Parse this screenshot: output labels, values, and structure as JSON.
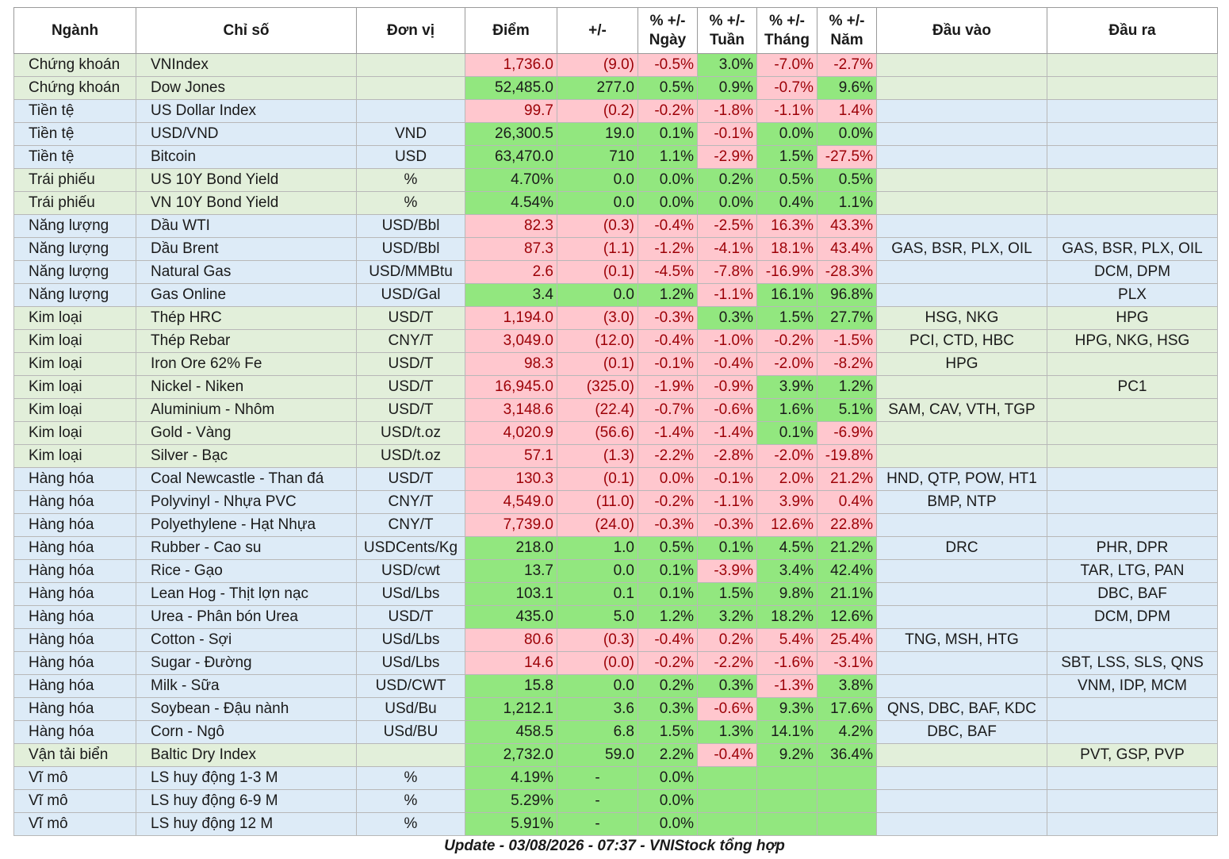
{
  "headers": [
    "Ngành",
    "Chỉ số",
    "Đơn vị",
    "Điểm",
    "+/-",
    "% +/-\nNgày",
    "% +/-\nTuần",
    "% +/-\nTháng",
    "% +/-\nNăm",
    "Đầu vào",
    "Đầu ra"
  ],
  "footer": "Update - 03/08/2026 - 07:37 - VNIStock tổng hợp",
  "colors": {
    "positive": "#92e77f",
    "negative": "#ffc7ce",
    "negative_text": "#9c0006",
    "group_green": "#e2efda",
    "group_blue": "#ddebf7"
  },
  "rows": [
    {
      "group": "Chứng khoán",
      "index": "VNIndex",
      "unit": "",
      "point": "1,736.0",
      "change": "(9.0)",
      "day": "-0.5%",
      "week": "3.0%",
      "month": "-7.0%",
      "year": "-2.7%",
      "input": "",
      "output": "",
      "bg": "g1",
      "s": [
        "neg",
        "neg",
        "neg",
        "pos",
        "neg",
        "neg"
      ]
    },
    {
      "group": "Chứng khoán",
      "index": "Dow Jones",
      "unit": "",
      "point": "52,485.0",
      "change": "277.0",
      "day": "0.5%",
      "week": "0.9%",
      "month": "-0.7%",
      "year": "9.6%",
      "input": "",
      "output": "",
      "bg": "g1",
      "s": [
        "pos",
        "pos",
        "pos",
        "pos",
        "neg",
        "pos"
      ]
    },
    {
      "group": "Tiền tệ",
      "index": "US Dollar Index",
      "unit": "",
      "point": "99.7",
      "change": "(0.2)",
      "day": "-0.2%",
      "week": "-1.8%",
      "month": "-1.1%",
      "year": "1.4%",
      "input": "",
      "output": "",
      "bg": "g2",
      "s": [
        "neg",
        "neg",
        "neg",
        "neg",
        "neg",
        "neg"
      ]
    },
    {
      "group": "Tiền tệ",
      "index": "USD/VND",
      "unit": "VND",
      "point": "26,300.5",
      "change": "19.0",
      "day": "0.1%",
      "week": "-0.1%",
      "month": "0.0%",
      "year": "0.0%",
      "input": "",
      "output": "",
      "bg": "g2",
      "s": [
        "pos",
        "pos",
        "pos",
        "neg",
        "pos",
        "pos"
      ]
    },
    {
      "group": "Tiền tệ",
      "index": "Bitcoin",
      "unit": "USD",
      "point": "63,470.0",
      "change": "710",
      "day": "1.1%",
      "week": "-2.9%",
      "month": "1.5%",
      "year": "-27.5%",
      "input": "",
      "output": "",
      "bg": "g2",
      "s": [
        "pos",
        "pos",
        "pos",
        "neg",
        "pos",
        "neg"
      ]
    },
    {
      "group": "Trái phiếu",
      "index": "US 10Y Bond Yield",
      "unit": "%",
      "point": "4.70%",
      "change": "0.0",
      "day": "0.0%",
      "week": "0.2%",
      "month": "0.5%",
      "year": "0.5%",
      "input": "",
      "output": "",
      "bg": "g1",
      "s": [
        "pos",
        "pos",
        "pos",
        "pos",
        "pos",
        "pos"
      ]
    },
    {
      "group": "Trái phiếu",
      "index": "VN 10Y Bond Yield",
      "unit": "%",
      "point": "4.54%",
      "change": "0.0",
      "day": "0.0%",
      "week": "0.0%",
      "month": "0.4%",
      "year": "1.1%",
      "input": "",
      "output": "",
      "bg": "g1",
      "s": [
        "pos",
        "pos",
        "pos",
        "pos",
        "pos",
        "pos"
      ]
    },
    {
      "group": "Năng lượng",
      "index": "Dầu WTI",
      "unit": "USD/Bbl",
      "point": "82.3",
      "change": "(0.3)",
      "day": "-0.4%",
      "week": "-2.5%",
      "month": "16.3%",
      "year": "43.3%",
      "input": "",
      "output": "",
      "bg": "g2",
      "s": [
        "neg",
        "neg",
        "neg",
        "neg",
        "neg",
        "neg"
      ]
    },
    {
      "group": "Năng lượng",
      "index": "Dầu Brent",
      "unit": "USD/Bbl",
      "point": "87.3",
      "change": "(1.1)",
      "day": "-1.2%",
      "week": "-4.1%",
      "month": "18.1%",
      "year": "43.4%",
      "input": "GAS, BSR, PLX, OIL",
      "output": "GAS, BSR, PLX, OIL",
      "bg": "g2",
      "s": [
        "neg",
        "neg",
        "neg",
        "neg",
        "neg",
        "neg"
      ]
    },
    {
      "group": "Năng lượng",
      "index": "Natural Gas",
      "unit": "USD/MMBtu",
      "point": "2.6",
      "change": "(0.1)",
      "day": "-4.5%",
      "week": "-7.8%",
      "month": "-16.9%",
      "year": "-28.3%",
      "input": "",
      "output": "DCM, DPM",
      "bg": "g2",
      "s": [
        "neg",
        "neg",
        "neg",
        "neg",
        "neg",
        "neg"
      ]
    },
    {
      "group": "Năng lượng",
      "index": "Gas Online",
      "unit": "USD/Gal",
      "point": "3.4",
      "change": "0.0",
      "day": "1.2%",
      "week": "-1.1%",
      "month": "16.1%",
      "year": "96.8%",
      "input": "",
      "output": "PLX",
      "bg": "g2",
      "s": [
        "pos",
        "pos",
        "pos",
        "neg",
        "pos",
        "pos"
      ]
    },
    {
      "group": "Kim loại",
      "index": "Thép HRC",
      "unit": "USD/T",
      "point": "1,194.0",
      "change": "(3.0)",
      "day": "-0.3%",
      "week": "0.3%",
      "month": "1.5%",
      "year": "27.7%",
      "input": "HSG, NKG",
      "output": "HPG",
      "bg": "g1",
      "s": [
        "neg",
        "neg",
        "neg",
        "pos",
        "pos",
        "pos"
      ]
    },
    {
      "group": "Kim loại",
      "index": "Thép Rebar",
      "unit": "CNY/T",
      "point": "3,049.0",
      "change": "(12.0)",
      "day": "-0.4%",
      "week": "-1.0%",
      "month": "-0.2%",
      "year": "-1.5%",
      "input": "PCI, CTD, HBC",
      "output": "HPG, NKG, HSG",
      "bg": "g1",
      "s": [
        "neg",
        "neg",
        "neg",
        "neg",
        "neg",
        "neg"
      ]
    },
    {
      "group": "Kim loại",
      "index": "Iron Ore 62% Fe",
      "unit": "USD/T",
      "point": "98.3",
      "change": "(0.1)",
      "day": "-0.1%",
      "week": "-0.4%",
      "month": "-2.0%",
      "year": "-8.2%",
      "input": "HPG",
      "output": "",
      "bg": "g1",
      "s": [
        "neg",
        "neg",
        "neg",
        "neg",
        "neg",
        "neg"
      ]
    },
    {
      "group": "Kim loại",
      "index": "Nickel - Niken",
      "unit": "USD/T",
      "point": "16,945.0",
      "change": "(325.0)",
      "day": "-1.9%",
      "week": "-0.9%",
      "month": "3.9%",
      "year": "1.2%",
      "input": "",
      "output": "PC1",
      "bg": "g1",
      "s": [
        "neg",
        "neg",
        "neg",
        "neg",
        "pos",
        "pos"
      ]
    },
    {
      "group": "Kim loại",
      "index": "Aluminium - Nhôm",
      "unit": "USD/T",
      "point": "3,148.6",
      "change": "(22.4)",
      "day": "-0.7%",
      "week": "-0.6%",
      "month": "1.6%",
      "year": "5.1%",
      "input": "SAM, CAV, VTH, TGP",
      "output": "",
      "bg": "g1",
      "s": [
        "neg",
        "neg",
        "neg",
        "neg",
        "pos",
        "pos"
      ]
    },
    {
      "group": "Kim loại",
      "index": "Gold - Vàng",
      "unit": "USD/t.oz",
      "point": "4,020.9",
      "change": "(56.6)",
      "day": "-1.4%",
      "week": "-1.4%",
      "month": "0.1%",
      "year": "-6.9%",
      "input": "",
      "output": "",
      "bg": "g1",
      "s": [
        "neg",
        "neg",
        "neg",
        "neg",
        "pos",
        "neg"
      ]
    },
    {
      "group": "Kim loại",
      "index": "Silver - Bạc",
      "unit": "USD/t.oz",
      "point": "57.1",
      "change": "(1.3)",
      "day": "-2.2%",
      "week": "-2.8%",
      "month": "-2.0%",
      "year": "-19.8%",
      "input": "",
      "output": "",
      "bg": "g1",
      "s": [
        "neg",
        "neg",
        "neg",
        "neg",
        "neg",
        "neg"
      ]
    },
    {
      "group": "Hàng hóa",
      "index": "Coal Newcastle - Than đá",
      "unit": "USD/T",
      "point": "130.3",
      "change": "(0.1)",
      "day": "0.0%",
      "week": "-0.1%",
      "month": "2.0%",
      "year": "21.2%",
      "input": "HND, QTP, POW, HT1",
      "output": "",
      "bg": "g2",
      "s": [
        "neg",
        "neg",
        "neg",
        "neg",
        "neg",
        "neg"
      ]
    },
    {
      "group": "Hàng hóa",
      "index": "Polyvinyl - Nhựa PVC",
      "unit": "CNY/T",
      "point": "4,549.0",
      "change": "(11.0)",
      "day": "-0.2%",
      "week": "-1.1%",
      "month": "3.9%",
      "year": "0.4%",
      "input": "BMP, NTP",
      "output": "",
      "bg": "g2",
      "s": [
        "neg",
        "neg",
        "neg",
        "neg",
        "neg",
        "neg"
      ]
    },
    {
      "group": "Hàng hóa",
      "index": "Polyethylene - Hạt Nhựa",
      "unit": "CNY/T",
      "point": "7,739.0",
      "change": "(24.0)",
      "day": "-0.3%",
      "week": "-0.3%",
      "month": "12.6%",
      "year": "22.8%",
      "input": "",
      "output": "",
      "bg": "g2",
      "s": [
        "neg",
        "neg",
        "neg",
        "neg",
        "neg",
        "neg"
      ]
    },
    {
      "group": "Hàng hóa",
      "index": "Rubber - Cao su",
      "unit": "USDCents/Kg",
      "point": "218.0",
      "change": "1.0",
      "day": "0.5%",
      "week": "0.1%",
      "month": "4.5%",
      "year": "21.2%",
      "input": "DRC",
      "output": "PHR, DPR",
      "bg": "g2",
      "s": [
        "pos",
        "pos",
        "pos",
        "pos",
        "pos",
        "pos"
      ]
    },
    {
      "group": "Hàng hóa",
      "index": "Rice - Gạo",
      "unit": "USD/cwt",
      "point": "13.7",
      "change": "0.0",
      "day": "0.1%",
      "week": "-3.9%",
      "month": "3.4%",
      "year": "42.4%",
      "input": "",
      "output": "TAR, LTG, PAN",
      "bg": "g2",
      "s": [
        "pos",
        "pos",
        "pos",
        "neg",
        "pos",
        "pos"
      ]
    },
    {
      "group": "Hàng hóa",
      "index": "Lean Hog - Thịt lợn nạc",
      "unit": "USd/Lbs",
      "point": "103.1",
      "change": "0.1",
      "day": "0.1%",
      "week": "1.5%",
      "month": "9.8%",
      "year": "21.1%",
      "input": "",
      "output": "DBC, BAF",
      "bg": "g2",
      "s": [
        "pos",
        "pos",
        "pos",
        "pos",
        "pos",
        "pos"
      ]
    },
    {
      "group": "Hàng hóa",
      "index": "Urea - Phân bón Urea",
      "unit": "USD/T",
      "point": "435.0",
      "change": "5.0",
      "day": "1.2%",
      "week": "3.2%",
      "month": "18.2%",
      "year": "12.6%",
      "input": "",
      "output": "DCM, DPM",
      "bg": "g2",
      "s": [
        "pos",
        "pos",
        "pos",
        "pos",
        "pos",
        "pos"
      ]
    },
    {
      "group": "Hàng hóa",
      "index": "Cotton - Sợi",
      "unit": "USd/Lbs",
      "point": "80.6",
      "change": "(0.3)",
      "day": "-0.4%",
      "week": "0.2%",
      "month": "5.4%",
      "year": "25.4%",
      "input": "TNG, MSH, HTG",
      "output": "",
      "bg": "g2",
      "s": [
        "neg",
        "neg",
        "neg",
        "neg",
        "neg",
        "neg"
      ]
    },
    {
      "group": "Hàng hóa",
      "index": "Sugar - Đường",
      "unit": "USd/Lbs",
      "point": "14.6",
      "change": "(0.0)",
      "day": "-0.2%",
      "week": "-2.2%",
      "month": "-1.6%",
      "year": "-3.1%",
      "input": "",
      "output": "SBT, LSS, SLS, QNS",
      "bg": "g2",
      "s": [
        "neg",
        "neg",
        "neg",
        "neg",
        "neg",
        "neg"
      ]
    },
    {
      "group": "Hàng hóa",
      "index": "Milk - Sữa",
      "unit": "USD/CWT",
      "point": "15.8",
      "change": "0.0",
      "day": "0.2%",
      "week": "0.3%",
      "month": "-1.3%",
      "year": "3.8%",
      "input": "",
      "output": "VNM, IDP, MCM",
      "bg": "g2",
      "s": [
        "pos",
        "pos",
        "pos",
        "pos",
        "neg",
        "pos"
      ]
    },
    {
      "group": "Hàng hóa",
      "index": "Soybean - Đậu nành",
      "unit": "USd/Bu",
      "point": "1,212.1",
      "change": "3.6",
      "day": "0.3%",
      "week": "-0.6%",
      "month": "9.3%",
      "year": "17.6%",
      "input": "QNS, DBC, BAF, KDC",
      "output": "",
      "bg": "g2",
      "s": [
        "pos",
        "pos",
        "pos",
        "neg",
        "pos",
        "pos"
      ]
    },
    {
      "group": "Hàng hóa",
      "index": "Corn - Ngô",
      "unit": "USd/BU",
      "point": "458.5",
      "change": "6.8",
      "day": "1.5%",
      "week": "1.3%",
      "month": "14.1%",
      "year": "4.2%",
      "input": "DBC, BAF",
      "output": "",
      "bg": "g2",
      "s": [
        "pos",
        "pos",
        "pos",
        "pos",
        "pos",
        "pos"
      ]
    },
    {
      "group": "Vận tải biển",
      "index": "Baltic Dry Index",
      "unit": "",
      "point": "2,732.0",
      "change": "59.0",
      "day": "2.2%",
      "week": "-0.4%",
      "month": "9.2%",
      "year": "36.4%",
      "input": "",
      "output": "PVT, GSP, PVP",
      "bg": "g1",
      "s": [
        "pos",
        "pos",
        "pos",
        "neg",
        "pos",
        "pos"
      ]
    },
    {
      "group": "Vĩ mô",
      "index": "LS huy động 1-3 M",
      "unit": "%",
      "point": "4.19%",
      "change": "-",
      "day": "0.0%",
      "week": "",
      "month": "",
      "year": "",
      "input": "",
      "output": "",
      "bg": "g2",
      "s": [
        "pos",
        "pos",
        "pos",
        "pos",
        "pos",
        "pos"
      ]
    },
    {
      "group": "Vĩ mô",
      "index": "LS huy động 6-9 M",
      "unit": "%",
      "point": "5.29%",
      "change": "-",
      "day": "0.0%",
      "week": "",
      "month": "",
      "year": "",
      "input": "",
      "output": "",
      "bg": "g2",
      "s": [
        "pos",
        "pos",
        "pos",
        "pos",
        "pos",
        "pos"
      ]
    },
    {
      "group": "Vĩ mô",
      "index": "LS huy động 12 M",
      "unit": "%",
      "point": "5.91%",
      "change": "-",
      "day": "0.0%",
      "week": "",
      "month": "",
      "year": "",
      "input": "",
      "output": "",
      "bg": "g2",
      "s": [
        "pos",
        "pos",
        "pos",
        "pos",
        "pos",
        "pos"
      ]
    }
  ]
}
